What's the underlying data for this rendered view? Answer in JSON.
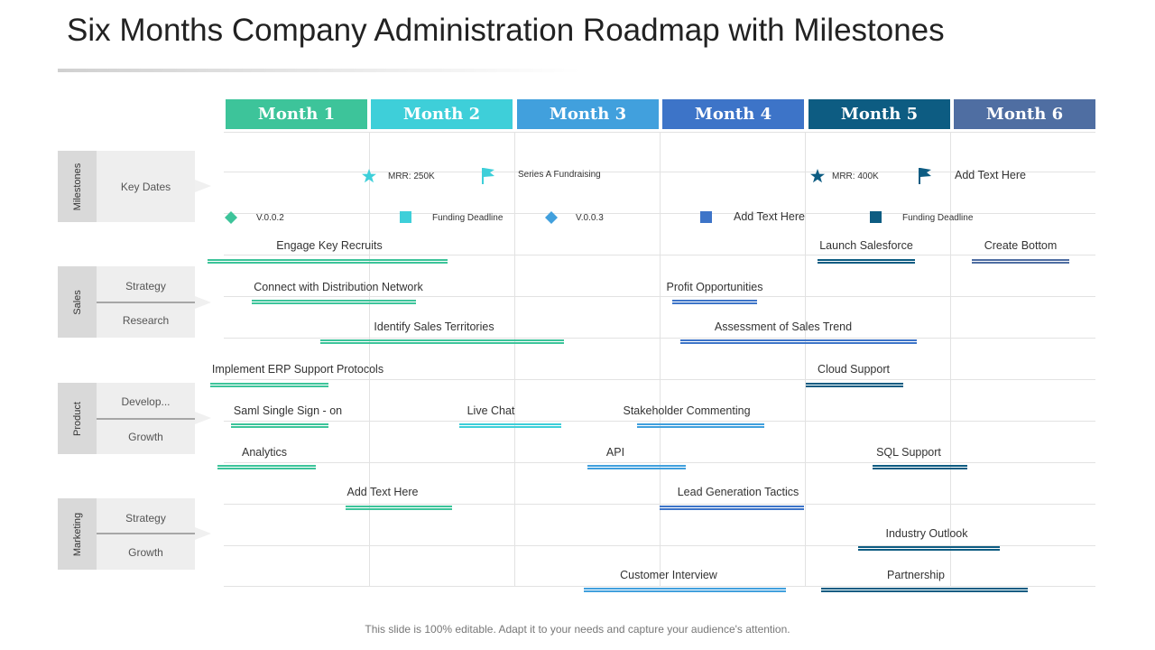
{
  "title": "Six Months Company Administration Roadmap with Milestones",
  "months": [
    {
      "label": "Month 1",
      "color": "#3dc49a"
    },
    {
      "label": "Month 2",
      "color": "#3ecfd9"
    },
    {
      "label": "Month 3",
      "color": "#41a0dd"
    },
    {
      "label": "Month 4",
      "color": "#3d74c8"
    },
    {
      "label": "Month 5",
      "color": "#0d5c82"
    },
    {
      "label": "Month 6",
      "color": "#4f6ea2"
    }
  ],
  "categories": [
    {
      "name": "Milestones",
      "subs": [
        "Key Dates"
      ]
    },
    {
      "name": "Sales",
      "subs": [
        "Strategy",
        "Research"
      ]
    },
    {
      "name": "Product",
      "subs": [
        "Develop...",
        "Growth"
      ]
    },
    {
      "name": "Marketing",
      "subs": [
        "Strategy",
        "Growth"
      ]
    }
  ],
  "milestones": [
    {
      "label": "MRR: 250K",
      "icon": "star-icon",
      "color": "#3ecfd9"
    },
    {
      "label": "Series A Fundraising",
      "icon": "flag-icon",
      "color": "#3ecfd9"
    },
    {
      "label": "MRR: 400K",
      "icon": "star-icon",
      "color": "#0d5c82"
    },
    {
      "label": "Add Text Here",
      "icon": "flag-icon",
      "color": "#0d5c82"
    },
    {
      "label": "V.0.0.2",
      "icon": "diamond-icon",
      "color": "#3dc49a"
    },
    {
      "label": "Funding Deadline",
      "icon": "square-icon",
      "color": "#3ecfd9"
    },
    {
      "label": "V.0.0.3",
      "icon": "diamond-icon",
      "color": "#41a0dd"
    },
    {
      "label": "Add Text Here",
      "icon": "square-icon",
      "color": "#3d74c8"
    },
    {
      "label": "Funding Deadline",
      "icon": "square-icon",
      "color": "#0d5c82"
    }
  ],
  "tasks": [
    {
      "label": "Engage Key Recruits",
      "color": "#3dc49a"
    },
    {
      "label": "Launch Salesforce",
      "color": "#0d5c82"
    },
    {
      "label": "Create Bottom",
      "color": "#4f6ea2"
    },
    {
      "label": "Connect with Distribution Network",
      "color": "#3dc49a"
    },
    {
      "label": "Profit Opportunities",
      "color": "#3d74c8"
    },
    {
      "label": "Identify Sales Territories",
      "color": "#3dc49a"
    },
    {
      "label": "Assessment of Sales Trend",
      "color": "#3d74c8"
    },
    {
      "label": "Implement ERP Support Protocols",
      "color": "#3dc49a"
    },
    {
      "label": "Cloud Support",
      "color": "#0d5c82"
    },
    {
      "label": "Saml Single Sign - on",
      "color": "#3dc49a"
    },
    {
      "label": "Live Chat",
      "color": "#3ecfd9"
    },
    {
      "label": "Stakeholder Commenting",
      "color": "#41a0dd"
    },
    {
      "label": "Analytics",
      "color": "#3dc49a"
    },
    {
      "label": "API",
      "color": "#41a0dd"
    },
    {
      "label": "SQL Support",
      "color": "#0d5c82"
    },
    {
      "label": "Add Text Here",
      "color": "#3dc49a"
    },
    {
      "label": "Lead Generation Tactics",
      "color": "#3d74c8"
    },
    {
      "label": "Industry Outlook",
      "color": "#0d5c82"
    },
    {
      "label": "Customer Interview",
      "color": "#41a0dd"
    },
    {
      "label": "Partnership",
      "color": "#0d5c82"
    }
  ],
  "footer": "This slide is 100% editable. Adapt it to your needs and capture your audience's attention."
}
